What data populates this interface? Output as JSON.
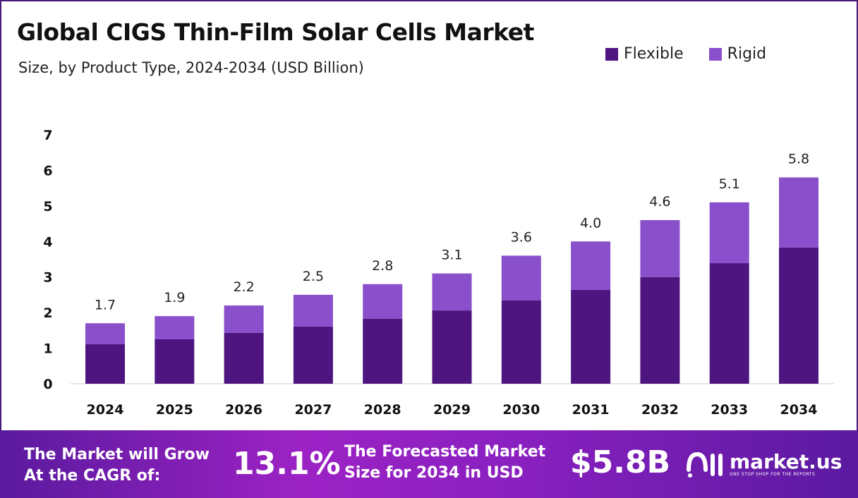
{
  "title": "Global CIGS Thin-Film Solar Cells Market",
  "subtitle": "Size, by Product Type, 2024-2034 (USD Billion)",
  "colors": {
    "Flexible": "#4e1580",
    "Rigid": "#8a4fcb"
  },
  "chart_data": {
    "type": "bar",
    "stacked": true,
    "categories": [
      "2024",
      "2025",
      "2026",
      "2027",
      "2028",
      "2029",
      "2030",
      "2031",
      "2032",
      "2033",
      "2034"
    ],
    "series": [
      {
        "name": "Flexible",
        "values": [
          1.11,
          1.25,
          1.43,
          1.61,
          1.83,
          2.06,
          2.34,
          2.64,
          3.0,
          3.39,
          3.83
        ]
      },
      {
        "name": "Rigid",
        "values": [
          0.59,
          0.65,
          0.77,
          0.89,
          0.97,
          1.04,
          1.26,
          1.36,
          1.6,
          1.71,
          1.97
        ]
      }
    ],
    "totals": [
      "1.7",
      "1.9",
      "2.2",
      "2.5",
      "2.8",
      "3.1",
      "3.6",
      "4.0",
      "4.6",
      "5.1",
      "5.8"
    ],
    "yticks": [
      "0",
      "1",
      "2",
      "3",
      "4",
      "5",
      "6",
      "7"
    ],
    "ylim": [
      0,
      7
    ],
    "grid": false,
    "legend": "top-right"
  },
  "footer": {
    "cagr_label_1": "The Market will Grow",
    "cagr_label_2": "At the CAGR of:",
    "cagr_value": "13.1%",
    "forecast_label_1": "The Forecasted Market",
    "forecast_label_2": "Size for 2034 in USD",
    "forecast_value": "$5.8B",
    "logo_text": "market.us",
    "logo_tagline": "ONE STOP SHOP FOR THE REPORTS"
  }
}
